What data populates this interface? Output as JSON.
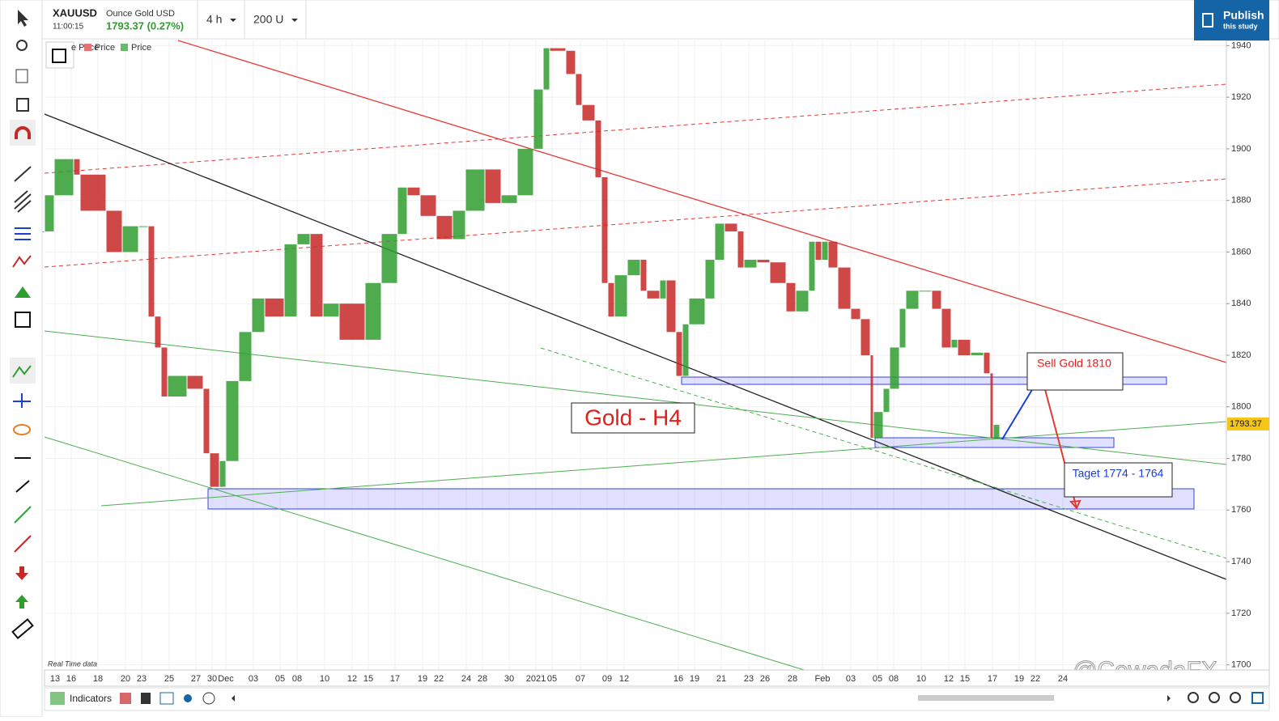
{
  "header": {
    "symbol": "XAUUSD",
    "description": "Ounce Gold USD",
    "time": "11:00:15",
    "quote": "1793.37 (0.27%)",
    "interval": "4 h",
    "bars": "200 U",
    "publish": "Publish",
    "publish_sub": "this study"
  },
  "legend": [
    "e Price",
    "Price",
    "Price"
  ],
  "footer": {
    "indicators": "Indicators",
    "note": "Real Time data",
    "watermark": "@CowadaFX"
  },
  "chart_data": {
    "type": "candlestick",
    "title": "Gold - H4",
    "annotations": [
      "Sell Gold 1810",
      "Taget 1774 - 1764"
    ],
    "x": [
      0,
      3,
      9,
      11,
      19,
      24,
      29,
      32,
      34,
      36,
      38,
      44,
      49,
      51,
      54,
      56,
      60,
      64,
      68,
      74,
      78,
      82,
      86,
      91,
      99,
      104,
      109,
      112,
      116,
      121,
      126,
      130,
      136,
      141,
      146,
      151,
      154,
      156,
      161,
      164,
      166,
      170,
      172,
      174,
      176,
      180,
      184,
      186,
      190,
      192,
      195,
      197,
      199,
      204,
      207,
      210,
      214,
      216,
      220,
      224,
      229,
      232,
      236,
      238,
      240,
      242,
      245,
      249,
      252,
      255,
      256,
      259,
      261,
      264,
      266,
      270,
      274,
      277,
      280,
      282,
      286,
      290,
      292,
      293,
      295
    ],
    "values": [
      1868,
      1882,
      1896,
      1890,
      1876,
      1860,
      1870,
      1870,
      1835,
      1823,
      1804,
      1812,
      1807,
      1782,
      1769,
      1779,
      1810,
      1829,
      1842,
      1835,
      1863,
      1867,
      1835,
      1840,
      1826,
      1848,
      1867,
      1885,
      1882,
      1874,
      1865,
      1876,
      1892,
      1879,
      1882,
      1900,
      1923,
      1939,
      1938,
      1929,
      1917,
      1911,
      1889,
      1848,
      1835,
      1851,
      1857,
      1845,
      1842,
      1849,
      1829,
      1812,
      1832,
      1842,
      1857,
      1871,
      1868,
      1854,
      1857,
      1856,
      1848,
      1837,
      1845,
      1864,
      1857,
      1864,
      1854,
      1838,
      1834,
      1820,
      1788,
      1798,
      1807,
      1823,
      1838,
      1845,
      1845,
      1838,
      1823,
      1826,
      1820,
      1821,
      1813,
      1788,
      1793
    ],
    "last_price": 1793.37,
    "up_color": "#2f9e2f",
    "down_color": "#c62828",
    "xlim": [
      0,
      365
    ],
    "ylim": [
      1698,
      1942
    ],
    "yticks": [
      1700,
      1720,
      1740,
      1760,
      1780,
      1800,
      1820,
      1840,
      1860,
      1880,
      1900,
      1920,
      1940
    ],
    "xticks": [
      {
        "value": 3.25,
        "label": "13"
      },
      {
        "value": 8.25,
        "label": "16"
      },
      {
        "value": 16.5,
        "label": "18"
      },
      {
        "value": 25,
        "label": "20"
      },
      {
        "value": 30,
        "label": "23"
      },
      {
        "value": 38.5,
        "label": "25"
      },
      {
        "value": 46.75,
        "label": "27"
      },
      {
        "value": 51.75,
        "label": "30"
      },
      {
        "value": 56,
        "label": "Dec"
      },
      {
        "value": 64.5,
        "label": "03"
      },
      {
        "value": 72.75,
        "label": "05"
      },
      {
        "value": 78,
        "label": "08"
      },
      {
        "value": 86.5,
        "label": "10"
      },
      {
        "value": 95,
        "label": "12"
      },
      {
        "value": 100,
        "label": "15"
      },
      {
        "value": 108.25,
        "label": "17"
      },
      {
        "value": 116.75,
        "label": "19"
      },
      {
        "value": 121.75,
        "label": "22"
      },
      {
        "value": 130.25,
        "label": "24"
      },
      {
        "value": 135.25,
        "label": "28"
      },
      {
        "value": 143.5,
        "label": "30"
      },
      {
        "value": 151.75,
        "label": "2021"
      },
      {
        "value": 156.75,
        "label": "05"
      },
      {
        "value": 165.5,
        "label": "07"
      },
      {
        "value": 173.75,
        "label": "09"
      },
      {
        "value": 179,
        "label": "12"
      },
      {
        "value": 195.75,
        "label": "16"
      },
      {
        "value": 200.75,
        "label": "19"
      },
      {
        "value": 209,
        "label": "21"
      },
      {
        "value": 217.5,
        "label": "23"
      },
      {
        "value": 222.5,
        "label": "26"
      },
      {
        "value": 231,
        "label": "28"
      },
      {
        "value": 240.25,
        "label": "Feb"
      },
      {
        "value": 249,
        "label": "03"
      },
      {
        "value": 257.25,
        "label": "05"
      },
      {
        "value": 262.25,
        "label": "08"
      },
      {
        "value": 270.75,
        "label": "10"
      },
      {
        "value": 279.25,
        "label": "12"
      },
      {
        "value": 284.25,
        "label": "15"
      },
      {
        "value": 292.75,
        "label": "17"
      },
      {
        "value": 301,
        "label": "19"
      },
      {
        "value": 306,
        "label": "22"
      },
      {
        "value": 314.5,
        "label": "24"
      }
    ],
    "grid": true
  }
}
